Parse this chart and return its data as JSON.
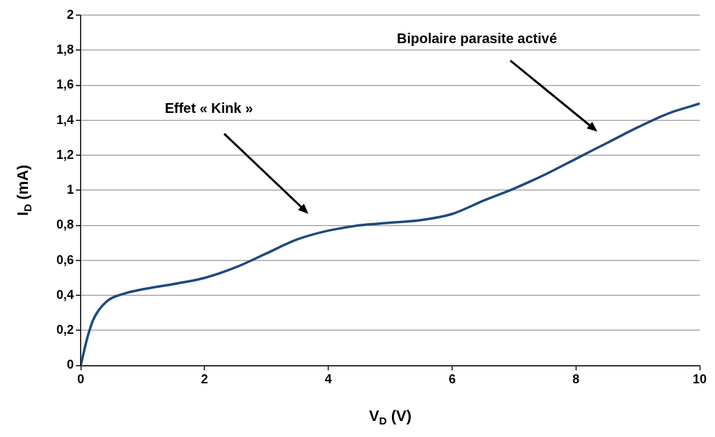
{
  "chart_data": {
    "type": "line",
    "xlabel": "V$_{D}$ (V)",
    "ylabel": "I$_{D}$ (mA)",
    "xlim": [
      0,
      10
    ],
    "xticks": [
      0,
      2,
      4,
      6,
      8,
      10
    ],
    "ylim": [
      0,
      2
    ],
    "yticks": [
      {
        "value": 0,
        "label": "0"
      },
      {
        "value": 0.2,
        "label": "0,2"
      },
      {
        "value": 0.4,
        "label": "0,4"
      },
      {
        "value": 0.6,
        "label": "0,6"
      },
      {
        "value": 0.8,
        "label": "0,8"
      },
      {
        "value": 1,
        "label": "1"
      },
      {
        "value": 1.2,
        "label": "1,2"
      },
      {
        "value": 1.4,
        "label": "1,4"
      },
      {
        "value": 1.6,
        "label": "1,6"
      },
      {
        "value": 1.8,
        "label": "1,8"
      },
      {
        "value": 2,
        "label": "2"
      }
    ],
    "grid": "y",
    "legend": false,
    "marker": "none",
    "line_style": "solid",
    "series": [
      {
        "color": "#1f497d",
        "x": [
          0,
          0.1,
          0.2,
          0.3,
          0.4,
          0.5,
          0.7,
          1,
          1.5,
          2,
          2.5,
          3,
          3.5,
          4,
          4.5,
          5,
          5.5,
          6,
          6.5,
          7,
          7.5,
          8,
          8.5,
          9,
          9.5,
          10
        ],
        "values": [
          0,
          0.15,
          0.26,
          0.32,
          0.36,
          0.385,
          0.41,
          0.435,
          0.465,
          0.5,
          0.56,
          0.64,
          0.72,
          0.77,
          0.8,
          0.815,
          0.83,
          0.865,
          0.94,
          1.01,
          1.09,
          1.18,
          1.27,
          1.36,
          1.44,
          1.495
        ]
      }
    ],
    "annotations": [
      "Effet « Kink »",
      "Bipolaire parasite activé"
    ]
  }
}
